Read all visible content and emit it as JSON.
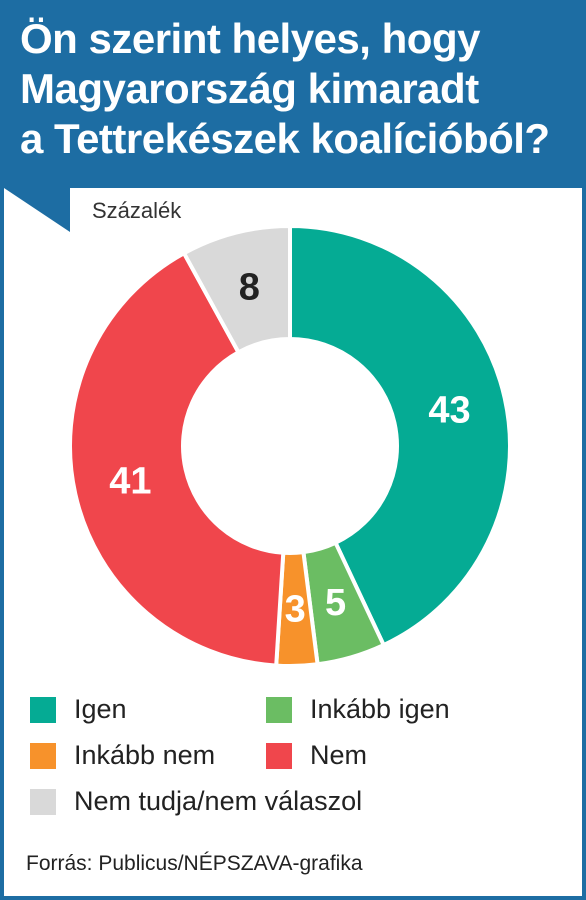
{
  "header": {
    "title_lines": [
      "Ön szerint helyes, hogy",
      "Magyarország kimaradt",
      "a Tettrekészek koalícióból?"
    ]
  },
  "unit_label": "Százalék",
  "colors": {
    "header_bg": "#1d6da3",
    "igen": "#05ab94",
    "inkabb_igen": "#6bbd63",
    "inkabb_nem": "#f7922b",
    "nem": "#f0464c",
    "nem_tudja": "#d9d9d9"
  },
  "chart_data": {
    "type": "pie",
    "variant": "donut",
    "unit": "Százalék",
    "categories": [
      "Igen",
      "Inkább igen",
      "Inkább nem",
      "Nem",
      "Nem tudja/nem válaszol"
    ],
    "values": [
      43,
      5,
      3,
      41,
      8
    ],
    "colors": [
      "#05ab94",
      "#6bbd63",
      "#f7922b",
      "#f0464c",
      "#d9d9d9"
    ],
    "label_colors": [
      "#ffffff",
      "#ffffff",
      "#ffffff",
      "#ffffff",
      "#222222"
    ],
    "start": "top",
    "direction": "clockwise",
    "legend_position": "bottom"
  },
  "legend": [
    {
      "label": "Igen",
      "color": "#05ab94"
    },
    {
      "label": "Inkább igen",
      "color": "#6bbd63"
    },
    {
      "label": "Inkább nem",
      "color": "#f7922b"
    },
    {
      "label": "Nem",
      "color": "#f0464c"
    },
    {
      "label": "Nem tudja/nem válaszol",
      "color": "#d9d9d9"
    }
  ],
  "source": "Forrás: Publicus/NÉPSZAVA-grafika"
}
